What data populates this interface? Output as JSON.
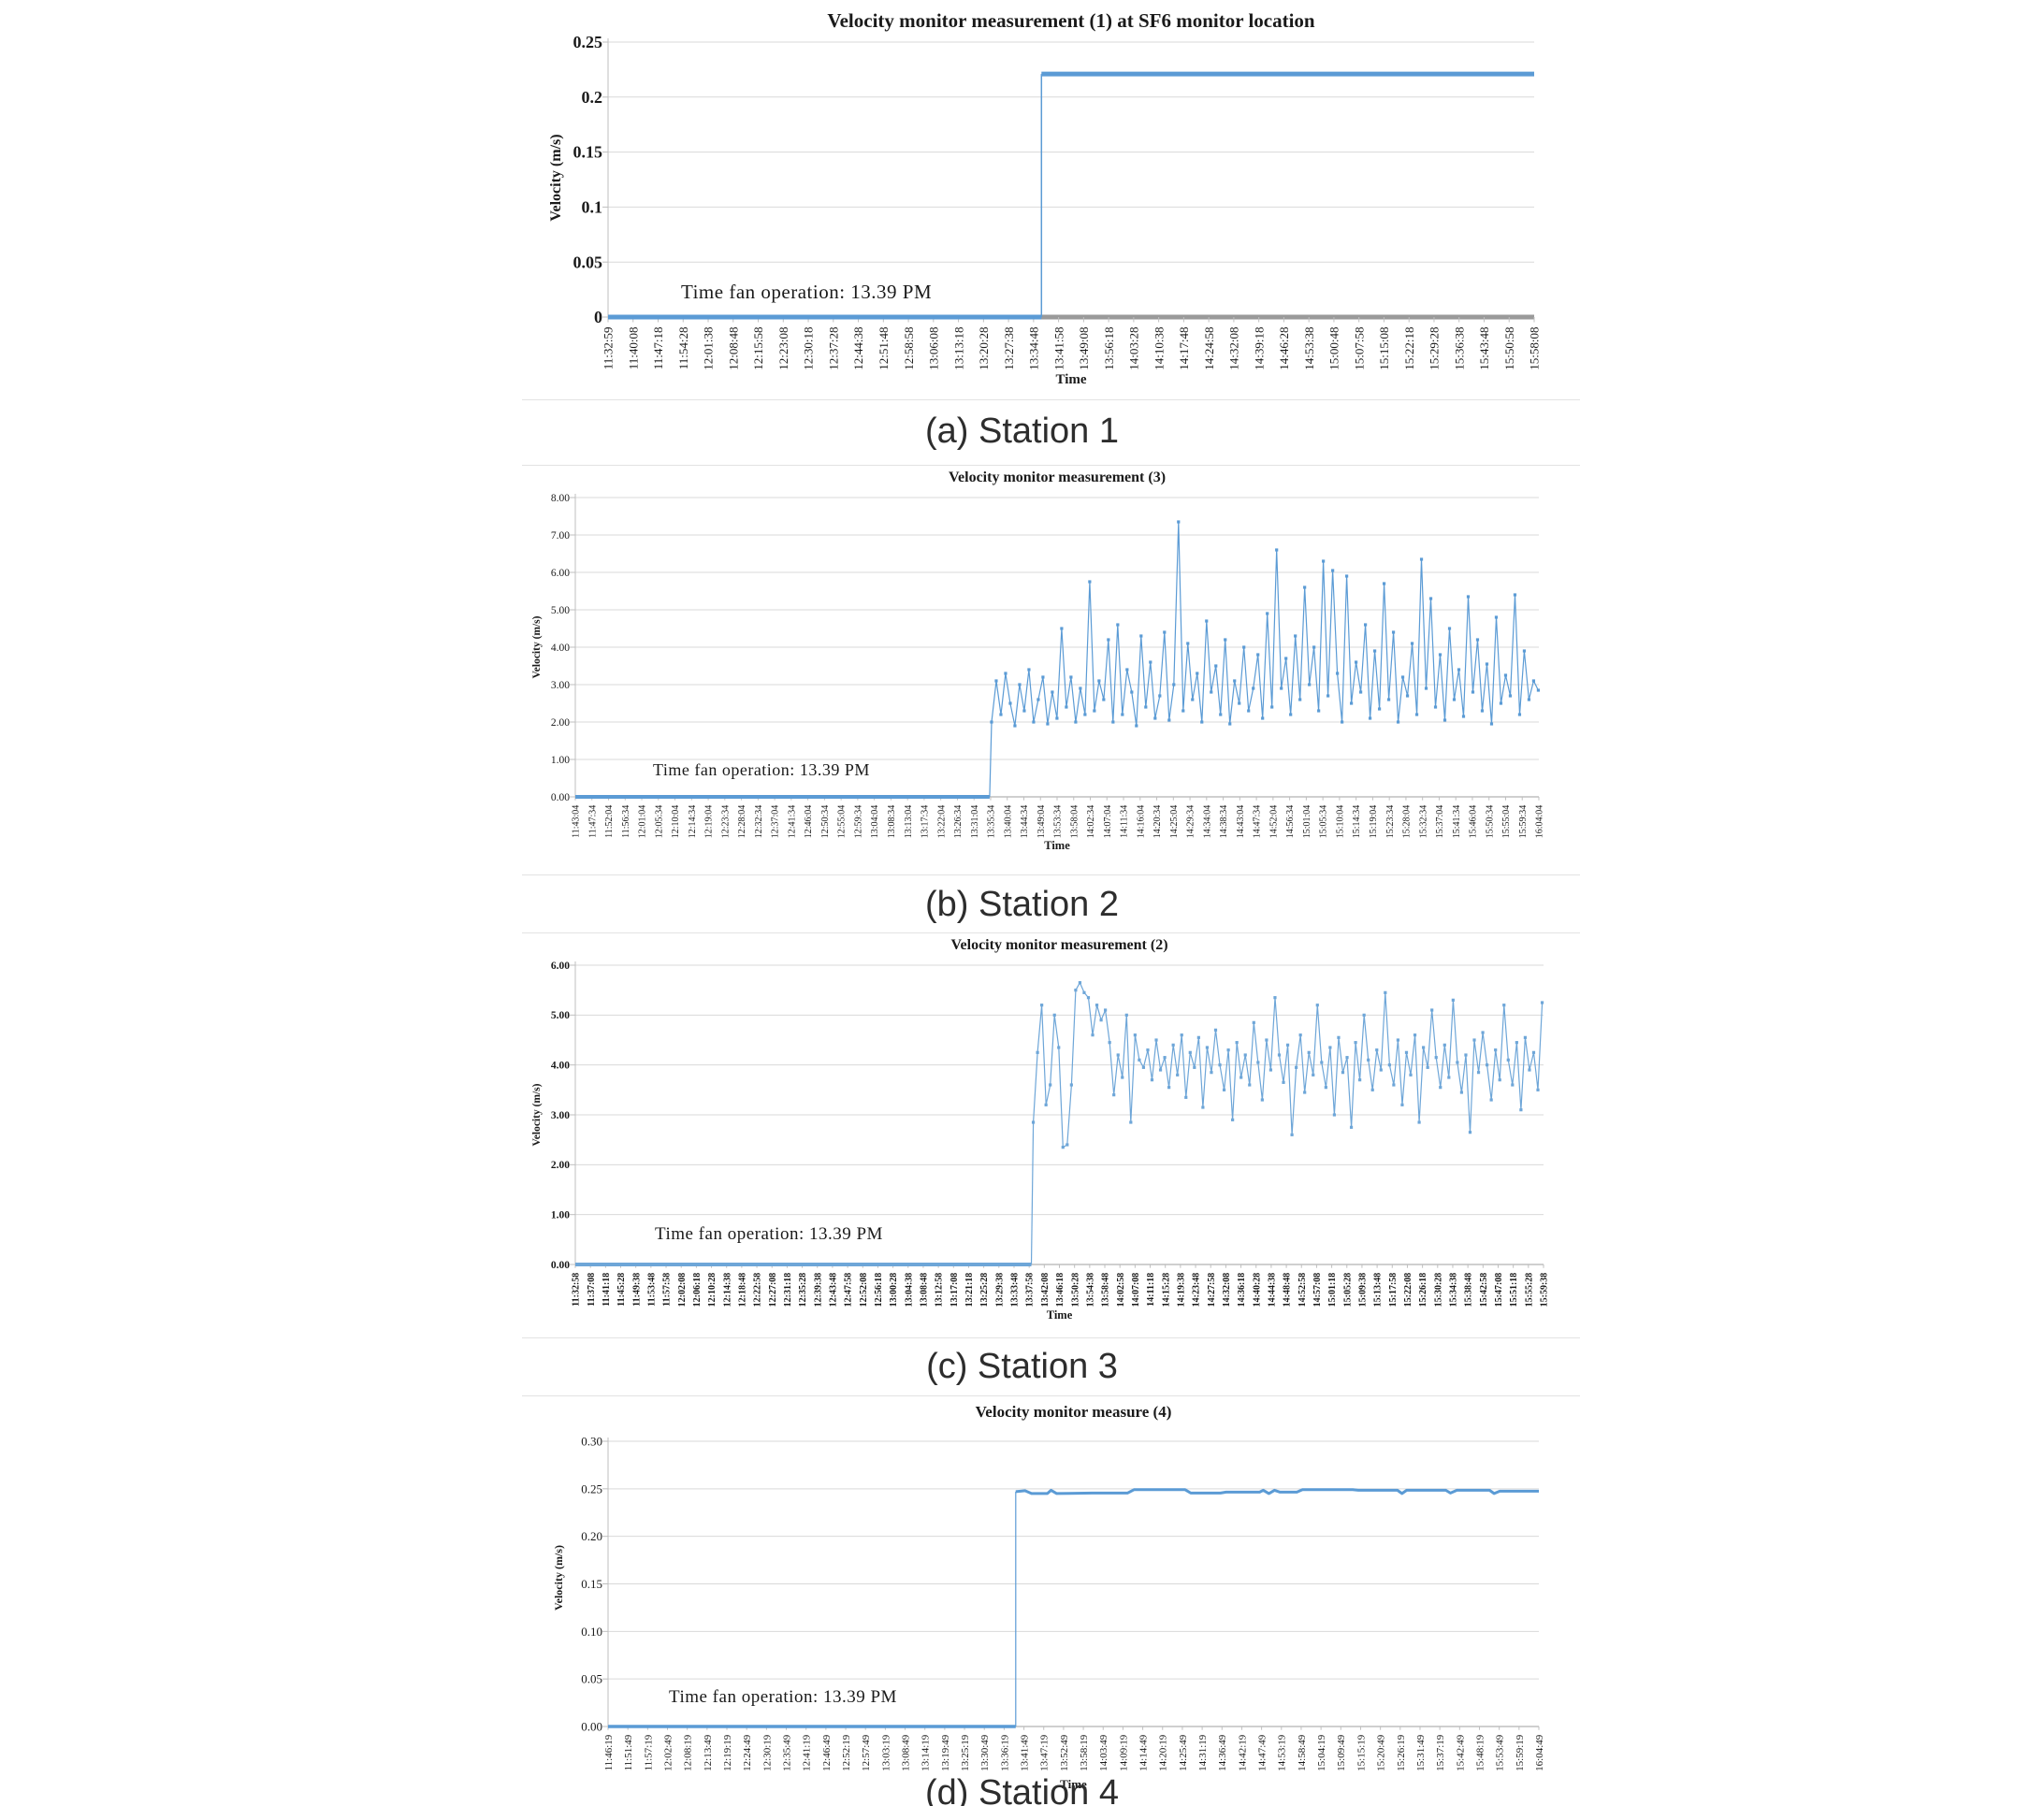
{
  "captions": [
    {
      "label": "(a) Station 1"
    },
    {
      "label": "(b) Station 2"
    },
    {
      "label": "(c) Station 3"
    },
    {
      "label": "(d) Station 4"
    }
  ],
  "chart_data": [
    {
      "type": "line",
      "title": "Velocity monitor measurement (1) at SF6 monitor location",
      "ylabel": "Velocity (m/s)",
      "xlabel": "Time",
      "annotation": "Time fan operation: 13.39 PM",
      "ylim": [
        0,
        0.25
      ],
      "grid": true,
      "legend": "none",
      "line_color": "#5b9bd5",
      "ytick_labels": [
        "0.25",
        "0.2",
        "0.15",
        "0.1",
        "0.05",
        "0"
      ],
      "ytick_values": [
        0.25,
        0.2,
        0.15,
        0.1,
        0.05,
        0
      ],
      "x_categories": [
        "11:32:59",
        "11:40:08",
        "11:47:18",
        "11:54:28",
        "12:01:38",
        "12:08:48",
        "12:15:58",
        "12:23:08",
        "12:30:18",
        "12:37:28",
        "12:44:38",
        "12:51:48",
        "12:58:58",
        "13:06:08",
        "13:13:18",
        "13:20:28",
        "13:27:38",
        "13:34:48",
        "13:41:58",
        "13:49:08",
        "13:56:18",
        "14:03:28",
        "14:10:38",
        "14:17:48",
        "14:24:58",
        "14:32:08",
        "14:39:18",
        "14:46:28",
        "14:53:38",
        "15:00:48",
        "15:07:58",
        "15:15:08",
        "15:22:18",
        "15:29:28",
        "15:36:38",
        "15:43:48",
        "15:50:58",
        "15:58:08"
      ],
      "series": [
        {
          "name": "velocity",
          "segments": [
            {
              "points": [
                [
                  0,
                  0
                ],
                [
                  0.468,
                  0
                ]
              ],
              "w": 5
            },
            {
              "points": [
                [
                  0.468,
                  0
                ],
                [
                  0.468,
                  0.221
                ]
              ],
              "w": 1.5
            },
            {
              "points": [
                [
                  0.468,
                  0.221
                ],
                [
                  1,
                  0.221
                ]
              ],
              "w": 5
            }
          ]
        }
      ]
    },
    {
      "type": "line",
      "title": "Velocity monitor measurement (3)",
      "ylabel": "Velocity (m/s)",
      "xlabel": "Time",
      "annotation": "Time fan operation: 13.39 PM",
      "ylim": [
        0,
        8
      ],
      "grid": true,
      "legend": "none",
      "line_color": "#5b9bd5",
      "ytick_labels": [
        "8.00",
        "7.00",
        "6.00",
        "5.00",
        "4.00",
        "3.00",
        "2.00",
        "1.00",
        "0.00"
      ],
      "ytick_values": [
        8,
        7,
        6,
        5,
        4,
        3,
        2,
        1,
        0
      ],
      "x_categories": [
        "11:43:04",
        "11:47:34",
        "11:52:04",
        "11:56:34",
        "12:01:04",
        "12:05:34",
        "12:10:04",
        "12:14:34",
        "12:19:04",
        "12:23:34",
        "12:28:04",
        "12:32:34",
        "12:37:04",
        "12:41:34",
        "12:46:04",
        "12:50:34",
        "12:55:04",
        "12:59:34",
        "13:04:04",
        "13:08:34",
        "13:13:04",
        "13:17:34",
        "13:22:04",
        "13:26:34",
        "13:31:04",
        "13:35:34",
        "13:40:04",
        "13:44:34",
        "13:49:04",
        "13:53:34",
        "13:58:04",
        "14:02:34",
        "14:07:04",
        "14:11:34",
        "14:16:04",
        "14:20:34",
        "14:25:04",
        "14:29:34",
        "14:34:04",
        "14:38:34",
        "14:43:04",
        "14:47:34",
        "14:52:04",
        "14:56:34",
        "15:01:04",
        "15:05:34",
        "15:10:04",
        "15:14:34",
        "15:19:04",
        "15:23:34",
        "15:28:04",
        "15:32:34",
        "15:37:04",
        "15:41:34",
        "15:46:04",
        "15:50:34",
        "15:55:04",
        "15:59:34",
        "16:04:04"
      ],
      "series": [
        {
          "name": "velocity",
          "segments": [
            {
              "points": [
                [
                  0,
                  0
                ],
                [
                  0.43,
                  0
                ]
              ],
              "w": 4
            },
            {
              "points": [
                [
                  0.43,
                  0
                ],
                [
                  0.432,
                  2.0
                ]
              ],
              "w": 1.2
            },
            {
              "start": 0.432,
              "step": 0.00485,
              "w": 1.2,
              "markers": true,
              "values": [
                2.0,
                3.1,
                2.2,
                3.3,
                2.5,
                1.9,
                3.0,
                2.3,
                3.4,
                2.0,
                2.6,
                3.2,
                1.95,
                2.8,
                2.1,
                4.5,
                2.4,
                3.2,
                2.0,
                2.9,
                2.2,
                5.75,
                2.3,
                3.1,
                2.6,
                4.2,
                2.0,
                4.6,
                2.2,
                3.4,
                2.8,
                1.9,
                4.3,
                2.4,
                3.6,
                2.1,
                2.7,
                4.4,
                2.05,
                3.0,
                7.35,
                2.3,
                4.1,
                2.6,
                3.3,
                2.0,
                4.7,
                2.8,
                3.5,
                2.2,
                4.2,
                1.95,
                3.1,
                2.5,
                4.0,
                2.3,
                2.9,
                3.8,
                2.1,
                4.9,
                2.4,
                6.6,
                2.9,
                3.7,
                2.2,
                4.3,
                2.6,
                5.6,
                3.0,
                4.0,
                2.3,
                6.3,
                2.7,
                6.05,
                3.3,
                2.0,
                5.9,
                2.5,
                3.6,
                2.8,
                4.6,
                2.1,
                3.9,
                2.35,
                5.7,
                2.6,
                4.4,
                2.0,
                3.2,
                2.7,
                4.1,
                2.2,
                6.35,
                2.9,
                5.3,
                2.4,
                3.8,
                2.05,
                4.5,
                2.6,
                3.4,
                2.15,
                5.35,
                2.8,
                4.2,
                2.3,
                3.55,
                1.95,
                4.8,
                2.5,
                3.25,
                2.7,
                5.4,
                2.2,
                3.9,
                2.6,
                3.1,
                2.85
              ]
            }
          ]
        }
      ]
    },
    {
      "type": "line",
      "title": "Velocity monitor measurement (2)",
      "ylabel": "Velocity (m/s)",
      "xlabel": "Time",
      "annotation": "Time fan operation: 13.39 PM",
      "ylim": [
        0,
        6
      ],
      "grid": true,
      "legend": "none",
      "line_color": "#6ea6d8",
      "ytick_labels": [
        "6.00",
        "5.00",
        "4.00",
        "3.00",
        "2.00",
        "1.00",
        "0.00"
      ],
      "ytick_values": [
        6,
        5,
        4,
        3,
        2,
        1,
        0
      ],
      "x_categories": [
        "11:32:58",
        "11:37:08",
        "11:41:18",
        "11:45:28",
        "11:49:38",
        "11:53:48",
        "11:57:58",
        "12:02:08",
        "12:06:18",
        "12:10:28",
        "12:14:38",
        "12:18:48",
        "12:22:58",
        "12:27:08",
        "12:31:18",
        "12:35:28",
        "12:39:38",
        "12:43:48",
        "12:47:58",
        "12:52:08",
        "12:56:18",
        "13:00:28",
        "13:04:38",
        "13:08:48",
        "13:12:58",
        "13:17:08",
        "13:21:18",
        "13:25:28",
        "13:29:38",
        "13:33:48",
        "13:37:58",
        "13:42:08",
        "13:46:18",
        "13:50:28",
        "13:54:38",
        "13:58:48",
        "14:02:58",
        "14:07:08",
        "14:11:18",
        "14:15:28",
        "14:19:38",
        "14:23:48",
        "14:27:58",
        "14:32:08",
        "14:36:18",
        "14:40:28",
        "14:44:38",
        "14:48:48",
        "14:52:58",
        "14:57:08",
        "15:01:18",
        "15:05:28",
        "15:09:38",
        "15:13:48",
        "15:17:58",
        "15:22:08",
        "15:26:18",
        "15:30:28",
        "15:34:38",
        "15:38:48",
        "15:42:58",
        "15:47:08",
        "15:51:18",
        "15:55:28",
        "15:59:38"
      ],
      "series": [
        {
          "name": "velocity",
          "segments": [
            {
              "points": [
                [
                  0,
                  0
                ],
                [
                  0.471,
                  0
                ]
              ],
              "w": 4
            },
            {
              "points": [
                [
                  0.471,
                  0
                ],
                [
                  0.473,
                  2.85
                ]
              ],
              "w": 1.2
            },
            {
              "start": 0.473,
              "step": 0.00438,
              "w": 1.2,
              "markers": true,
              "values": [
                2.85,
                4.25,
                5.2,
                3.2,
                3.6,
                5.0,
                4.35,
                2.35,
                2.4,
                3.6,
                5.5,
                5.65,
                5.45,
                5.35,
                4.6,
                5.2,
                4.9,
                5.1,
                4.45,
                3.4,
                4.2,
                3.75,
                5.0,
                2.85,
                4.6,
                4.1,
                3.95,
                4.3,
                3.7,
                4.5,
                3.9,
                4.15,
                3.55,
                4.4,
                3.8,
                4.6,
                3.35,
                4.25,
                3.95,
                4.55,
                3.15,
                4.35,
                3.85,
                4.7,
                4.0,
                3.5,
                4.3,
                2.9,
                4.45,
                3.75,
                4.2,
                3.6,
                4.85,
                4.05,
                3.3,
                4.5,
                3.9,
                5.35,
                4.2,
                3.65,
                4.4,
                2.6,
                3.95,
                4.6,
                3.45,
                4.25,
                3.8,
                5.2,
                4.05,
                3.55,
                4.35,
                3.0,
                4.55,
                3.85,
                4.15,
                2.75,
                4.45,
                3.7,
                5.0,
                4.1,
                3.5,
                4.3,
                3.9,
                5.45,
                4.0,
                3.6,
                4.5,
                3.2,
                4.25,
                3.8,
                4.6,
                2.85,
                4.35,
                3.95,
                5.1,
                4.15,
                3.55,
                4.4,
                3.75,
                5.3,
                4.05,
                3.45,
                4.2,
                2.65,
                4.5,
                3.85,
                4.65,
                4.0,
                3.3,
                4.3,
                3.7,
                5.2,
                4.1,
                3.6,
                4.45,
                3.1,
                4.55,
                3.9,
                4.25,
                3.5,
                5.25
              ]
            }
          ]
        }
      ]
    },
    {
      "type": "line",
      "title": "Velocity monitor measure (4)",
      "ylabel": "Velocity (m/s)",
      "xlabel": "Time",
      "annotation": "Time fan operation: 13.39 PM",
      "ylim": [
        0,
        0.3
      ],
      "grid": true,
      "legend": "none",
      "line_color": "#5b9bd5",
      "ytick_labels": [
        "0.30",
        "0.25",
        "0.20",
        "0.15",
        "0.10",
        "0.05",
        "0.00"
      ],
      "ytick_values": [
        0.3,
        0.25,
        0.2,
        0.15,
        0.1,
        0.05,
        0
      ],
      "x_categories": [
        "11:46:19",
        "11:51:49",
        "11:57:19",
        "12:02:49",
        "12:08:19",
        "12:13:49",
        "12:19:19",
        "12:24:49",
        "12:30:19",
        "12:35:49",
        "12:41:19",
        "12:46:49",
        "12:52:19",
        "12:57:49",
        "13:03:19",
        "13:08:49",
        "13:14:19",
        "13:19:49",
        "13:25:19",
        "13:30:49",
        "13:36:19",
        "13:41:49",
        "13:47:19",
        "13:52:49",
        "13:58:19",
        "14:03:49",
        "14:09:19",
        "14:14:49",
        "14:20:19",
        "14:25:49",
        "14:31:19",
        "14:36:49",
        "14:42:19",
        "14:47:49",
        "14:53:19",
        "14:58:49",
        "15:04:19",
        "15:09:49",
        "15:15:19",
        "15:20:49",
        "15:26:19",
        "15:31:49",
        "15:37:19",
        "15:42:49",
        "15:48:19",
        "15:53:49",
        "15:59:19",
        "16:04:49"
      ],
      "series": [
        {
          "name": "velocity",
          "segments": [
            {
              "points": [
                [
                  0,
                  0
                ],
                [
                  0.438,
                  0
                ]
              ],
              "w": 3.5
            },
            {
              "points": [
                [
                  0.438,
                  0
                ],
                [
                  0.438,
                  0.247
                ]
              ],
              "w": 1.2
            },
            {
              "points": [
                [
                  0.438,
                  0.247
                ],
                [
                  0.448,
                  0.248
                ],
                [
                  0.455,
                  0.245
                ],
                [
                  0.472,
                  0.245
                ],
                [
                  0.476,
                  0.2485
                ],
                [
                  0.482,
                  0.245
                ],
                [
                  0.52,
                  0.2455
                ],
                [
                  0.558,
                  0.2455
                ],
                [
                  0.565,
                  0.249
                ],
                [
                  0.62,
                  0.249
                ],
                [
                  0.626,
                  0.2455
                ],
                [
                  0.658,
                  0.2455
                ],
                [
                  0.664,
                  0.2465
                ],
                [
                  0.7,
                  0.2465
                ],
                [
                  0.704,
                  0.2485
                ],
                [
                  0.71,
                  0.245
                ],
                [
                  0.716,
                  0.2485
                ],
                [
                  0.722,
                  0.2465
                ],
                [
                  0.74,
                  0.2465
                ],
                [
                  0.746,
                  0.249
                ],
                [
                  0.8,
                  0.249
                ],
                [
                  0.806,
                  0.2485
                ],
                [
                  0.848,
                  0.2485
                ],
                [
                  0.853,
                  0.245
                ],
                [
                  0.858,
                  0.2485
                ],
                [
                  0.9,
                  0.2485
                ],
                [
                  0.905,
                  0.2455
                ],
                [
                  0.912,
                  0.2485
                ],
                [
                  0.947,
                  0.2485
                ],
                [
                  0.952,
                  0.245
                ],
                [
                  0.958,
                  0.2475
                ],
                [
                  1.0,
                  0.2475
                ]
              ],
              "w": 3
            }
          ]
        }
      ]
    }
  ]
}
